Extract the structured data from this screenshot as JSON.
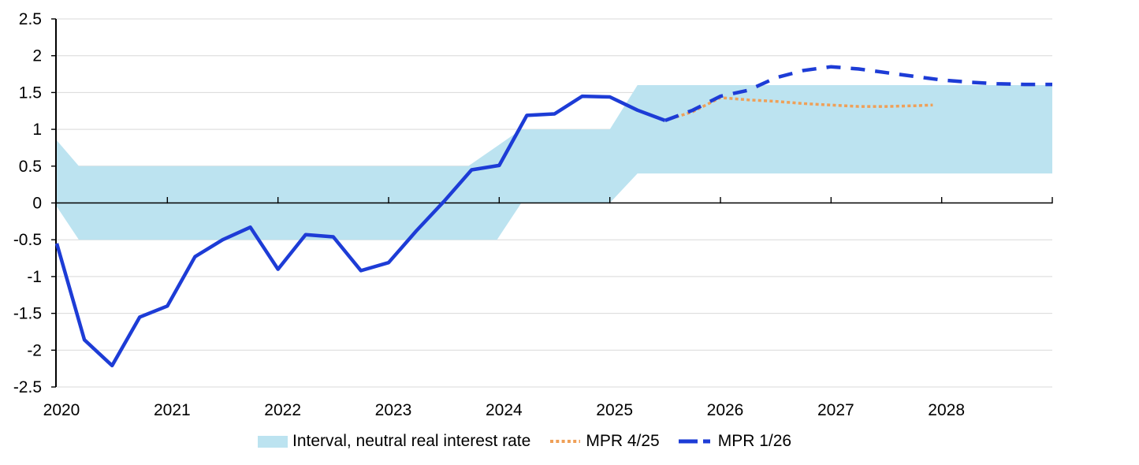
{
  "chart_data": {
    "type": "line",
    "title": "",
    "grid": "horizontal",
    "legend_position": "bottom",
    "legend": [
      "Interval, neutral real interest rate",
      "MPR 4/25",
      "MPR 1/26"
    ],
    "x_axis": {
      "min": 2020,
      "max": 2029,
      "tick_values": [
        2020,
        2021,
        2022,
        2023,
        2024,
        2025,
        2026,
        2027,
        2028
      ],
      "tick_labels": [
        "2020",
        "2021",
        "2022",
        "2023",
        "2024",
        "2025",
        "2026",
        "2027",
        "2028"
      ]
    },
    "y_axis": {
      "min": -2.5,
      "max": 2.5,
      "step": 0.5,
      "tick_values": [
        2.5,
        2,
        1.5,
        1,
        0.5,
        0,
        -0.5,
        -1,
        -1.5,
        -2,
        -2.5
      ],
      "tick_labels": [
        "2.5",
        "2",
        "1.5",
        "1",
        "0.5",
        "0",
        "-0.5",
        "-1",
        "-1.5",
        "-2",
        "-2.5"
      ]
    },
    "band": {
      "label": "Interval, neutral real interest rate",
      "color": "#BCE3F0",
      "upper": [
        [
          2020.0,
          0.85
        ],
        [
          2020.2,
          0.5
        ],
        [
          2023.72,
          0.5
        ],
        [
          2024.2,
          1.0
        ],
        [
          2025.0,
          1.0
        ],
        [
          2025.25,
          1.6
        ],
        [
          2029.0,
          1.6
        ]
      ],
      "lower": [
        [
          2020.0,
          -0.05
        ],
        [
          2020.2,
          -0.5
        ],
        [
          2023.98,
          -0.5
        ],
        [
          2024.2,
          0.0
        ],
        [
          2025.0,
          0.0
        ],
        [
          2025.25,
          0.4
        ],
        [
          2029.0,
          0.4
        ]
      ]
    },
    "series": [
      {
        "id": "historical-real-rate",
        "label": "",
        "style": "solid",
        "color": "#1D3CD6",
        "width": 4.5,
        "points": [
          [
            2020.0,
            -0.55
          ],
          [
            2020.25,
            -1.86
          ],
          [
            2020.5,
            -2.21
          ],
          [
            2020.75,
            -1.55
          ],
          [
            2021.0,
            -1.4
          ],
          [
            2021.25,
            -0.73
          ],
          [
            2021.5,
            -0.5
          ],
          [
            2021.75,
            -0.33
          ],
          [
            2022.0,
            -0.9
          ],
          [
            2022.25,
            -0.43
          ],
          [
            2022.5,
            -0.46
          ],
          [
            2022.75,
            -0.92
          ],
          [
            2023.0,
            -0.81
          ],
          [
            2023.25,
            -0.38
          ],
          [
            2023.5,
            0.02
          ],
          [
            2023.75,
            0.45
          ],
          [
            2024.0,
            0.51
          ],
          [
            2024.25,
            1.19
          ],
          [
            2024.5,
            1.21
          ],
          [
            2024.75,
            1.45
          ],
          [
            2025.0,
            1.44
          ],
          [
            2025.25,
            1.26
          ],
          [
            2025.5,
            1.12
          ]
        ]
      },
      {
        "id": "mpr-4-25",
        "label": "MPR 4/25",
        "style": "dotted",
        "color": "#EFA058",
        "width": 3.5,
        "points": [
          [
            2025.5,
            1.12
          ],
          [
            2025.75,
            1.24
          ],
          [
            2026.0,
            1.43
          ],
          [
            2026.25,
            1.4
          ],
          [
            2026.5,
            1.38
          ],
          [
            2026.75,
            1.35
          ],
          [
            2027.0,
            1.33
          ],
          [
            2027.25,
            1.31
          ],
          [
            2027.5,
            1.31
          ],
          [
            2027.75,
            1.32
          ],
          [
            2027.92,
            1.33
          ]
        ]
      },
      {
        "id": "mpr-1-26",
        "label": "MPR 1/26",
        "style": "dashed",
        "color": "#1D3CD6",
        "width": 4.5,
        "points": [
          [
            2025.5,
            1.12
          ],
          [
            2025.75,
            1.26
          ],
          [
            2026.0,
            1.45
          ],
          [
            2026.25,
            1.53
          ],
          [
            2026.5,
            1.7
          ],
          [
            2026.75,
            1.8
          ],
          [
            2027.0,
            1.85
          ],
          [
            2027.25,
            1.82
          ],
          [
            2027.5,
            1.77
          ],
          [
            2027.75,
            1.72
          ],
          [
            2028.0,
            1.67
          ],
          [
            2028.25,
            1.64
          ],
          [
            2028.5,
            1.62
          ],
          [
            2028.75,
            1.61
          ],
          [
            2029.0,
            1.61
          ]
        ]
      }
    ],
    "colors": {
      "gridline": "#D9D9D9",
      "axis": "#000000",
      "text": "#000000",
      "band": "#BCE3F0",
      "line_blue": "#1D3CD6",
      "line_orange": "#EFA058"
    }
  }
}
